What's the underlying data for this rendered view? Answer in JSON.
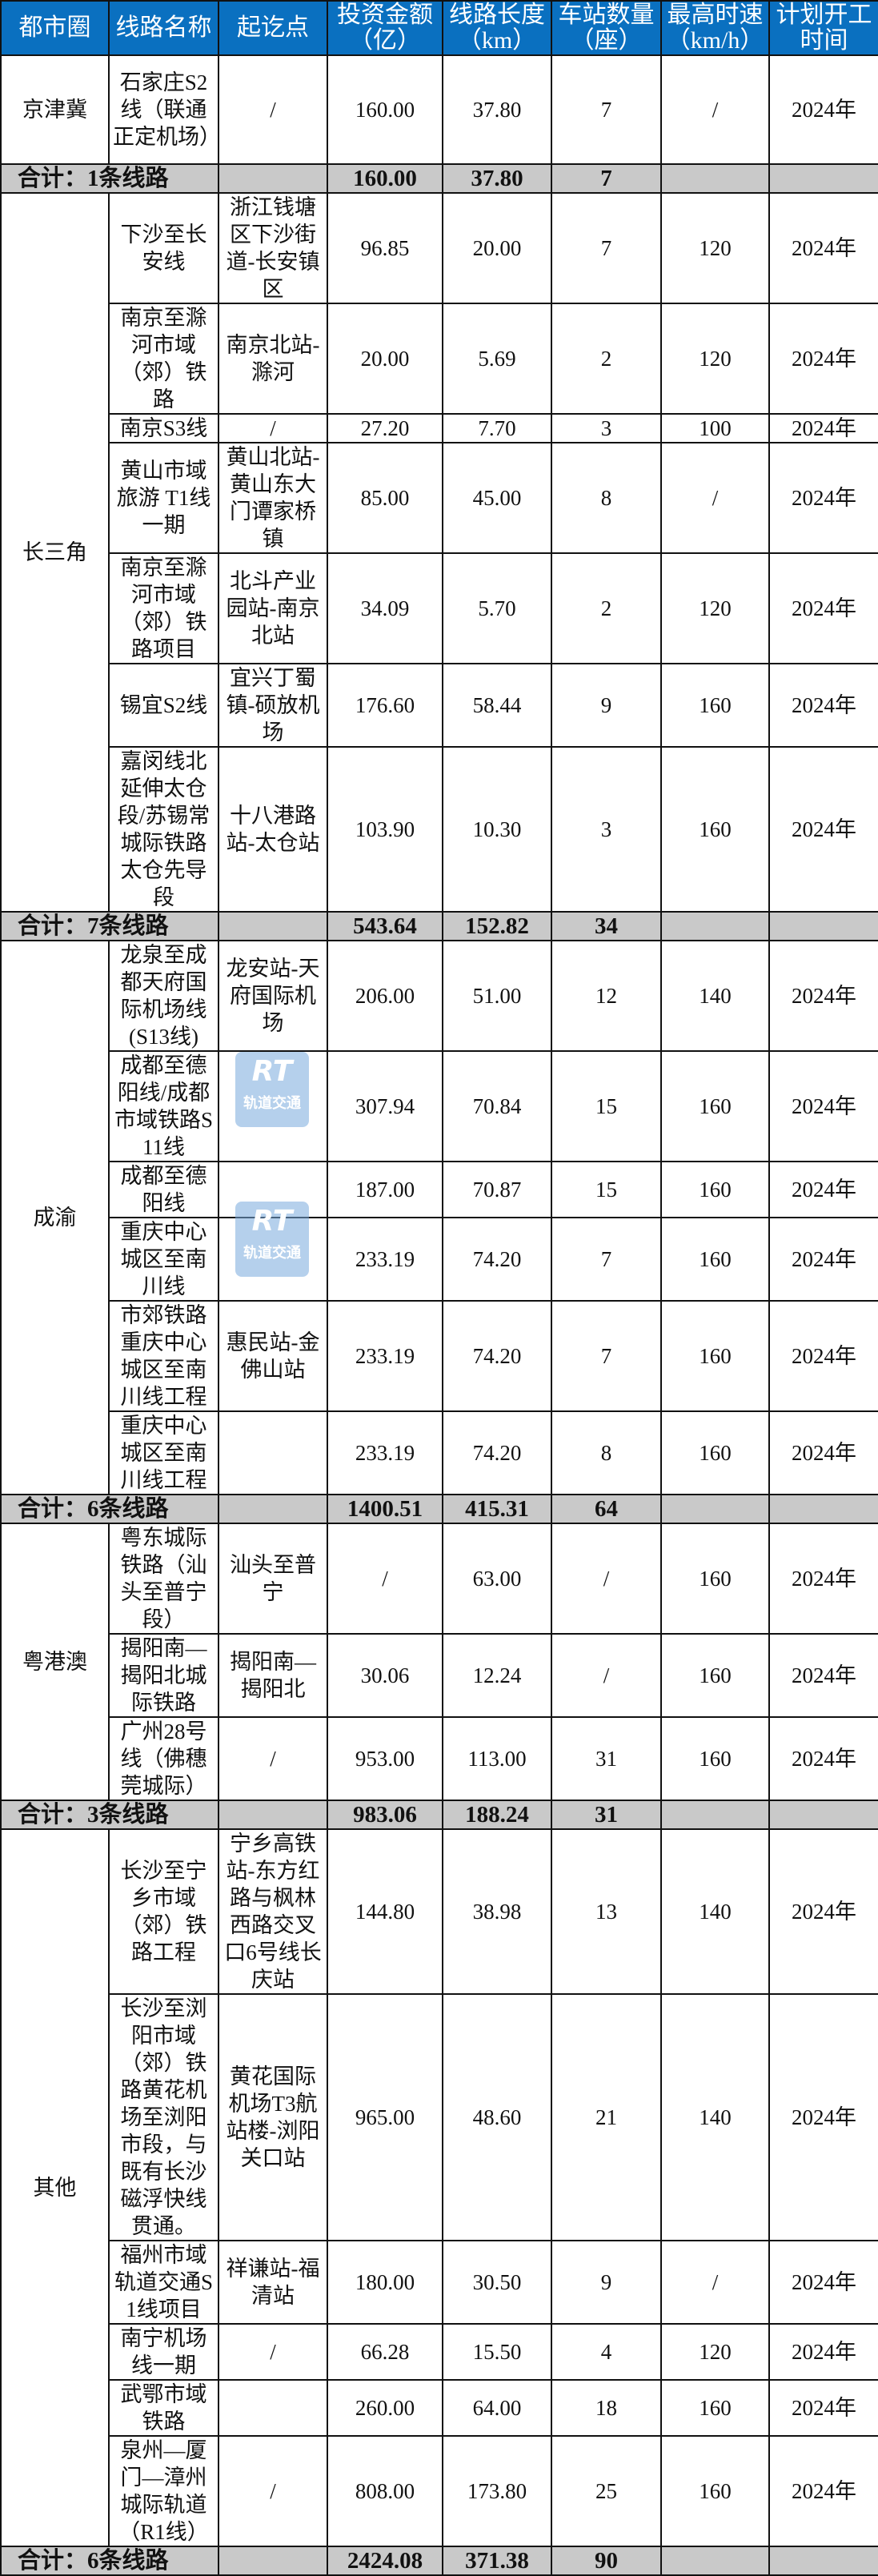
{
  "header": [
    "都市圈",
    "线路名称",
    "起讫点",
    "投资金额（亿）",
    "线路长度（km）",
    "车站数量（座）",
    "最高时速（km/h）",
    "计划开工时间"
  ],
  "groups": [
    {
      "region": "京津冀",
      "rows": [
        [
          "石家庄S2线（联通正定机场）",
          "/",
          "160.00",
          "37.80",
          "7",
          "/",
          "2024年"
        ]
      ],
      "subtotal": {
        "label": "合计：1条线路",
        "investment": "160.00",
        "length": "37.80",
        "stations": "7"
      }
    },
    {
      "region": "长三角",
      "rows": [
        [
          "下沙至长安线",
          "浙江钱塘区下沙街道-长安镇区",
          "96.85",
          "20.00",
          "7",
          "120",
          "2024年"
        ],
        [
          "南京至滁河市域（郊）铁路",
          "南京北站-滁河",
          "20.00",
          "5.69",
          "2",
          "120",
          "2024年"
        ],
        [
          "南京S3线",
          "/",
          "27.20",
          "7.70",
          "3",
          "100",
          "2024年"
        ],
        [
          "黄山市域旅游 T1线一期",
          "黄山北站-黄山东大门谭家桥镇",
          "85.00",
          "45.00",
          "8",
          "/",
          "2024年"
        ],
        [
          "南京至滁河市域（郊）铁路项目",
          "北斗产业园站-南京北站",
          "34.09",
          "5.70",
          "2",
          "120",
          "2024年"
        ],
        [
          "锡宜S2线",
          "宜兴丁蜀镇-硕放机场",
          "176.60",
          "58.44",
          "9",
          "160",
          "2024年"
        ],
        [
          "嘉闵线北延伸太仓段/苏锡常城际铁路太仓先导段",
          "十八港路站-太仓站",
          "103.90",
          "10.30",
          "3",
          "160",
          "2024年"
        ]
      ],
      "subtotal": {
        "label": "合计：7条线路",
        "investment": "543.64",
        "length": "152.82",
        "stations": "34"
      }
    },
    {
      "region": "成渝",
      "rows": [
        [
          "龙泉至成都天府国际机场线(S13线)",
          "龙安站-天府国际机场",
          "206.00",
          "51.00",
          "12",
          "140",
          "2024年"
        ],
        [
          "成都至德阳线/成都市域铁路S11线",
          "",
          "307.94",
          "70.84",
          "15",
          "160",
          "2024年"
        ],
        [
          "成都至德阳线",
          "",
          "187.00",
          "70.87",
          "15",
          "160",
          "2024年"
        ],
        [
          "重庆中心城区至南川线",
          "",
          "233.19",
          "74.20",
          "7",
          "160",
          "2024年"
        ],
        [
          "市郊铁路重庆中心城区至南川线工程",
          "惠民站-金佛山站",
          "233.19",
          "74.20",
          "7",
          "160",
          "2024年"
        ],
        [
          "重庆中心城区至南川线工程",
          "",
          "233.19",
          "74.20",
          "8",
          "160",
          "2024年"
        ]
      ],
      "subtotal": {
        "label": "合计：6条线路",
        "investment": "1400.51",
        "length": "415.31",
        "stations": "64"
      }
    },
    {
      "region": "粤港澳",
      "rows": [
        [
          "粤东城际铁路（汕头至普宁段）",
          "汕头至普宁",
          "/",
          "63.00",
          "/",
          "160",
          "2024年"
        ],
        [
          "揭阳南—揭阳北城际铁路",
          "揭阳南—揭阳北",
          "30.06",
          "12.24",
          "/",
          "160",
          "2024年"
        ],
        [
          "广州28号线（佛穗莞城际）",
          "/",
          "953.00",
          "113.00",
          "31",
          "160",
          "2024年"
        ]
      ],
      "subtotal": {
        "label": "合计：3条线路",
        "investment": "983.06",
        "length": "188.24",
        "stations": "31"
      }
    },
    {
      "region": "其他",
      "rows": [
        [
          "长沙至宁乡市域（郊）铁路工程",
          "宁乡高铁站-东方红路与枫林西路交叉口6号线长庆站",
          "144.80",
          "38.98",
          "13",
          "140",
          "2024年"
        ],
        [
          "长沙至浏阳市域（郊）铁路黄花机场至浏阳市段，与既有长沙磁浮快线贯通。",
          "黄花国际机场T3航站楼-浏阳关口站",
          "965.00",
          "48.60",
          "21",
          "140",
          "2024年"
        ],
        [
          "福州市域轨道交通S1线项目",
          "祥谦站-福清站",
          "180.00",
          "30.50",
          "9",
          "/",
          "2024年"
        ],
        [
          "南宁机场线一期",
          "/",
          "66.28",
          "15.50",
          "4",
          "120",
          "2024年"
        ],
        [
          "武鄂市域铁路",
          "",
          "260.00",
          "64.00",
          "18",
          "160",
          "2024年"
        ],
        [
          "泉州—厦门—漳州城际轨道（R1线）",
          "/",
          "808.00",
          "173.80",
          "25",
          "160",
          "2024年"
        ]
      ],
      "subtotal": {
        "label": "合计：6条线路",
        "investment": "2424.08",
        "length": "371.38",
        "stations": "90"
      }
    }
  ],
  "watermark": {
    "logo_text": "RT",
    "logo_subtext": "轨道交通"
  },
  "colors": {
    "header_bg": "#0a70c0",
    "subtotal_bg": "#c9c9c9"
  }
}
